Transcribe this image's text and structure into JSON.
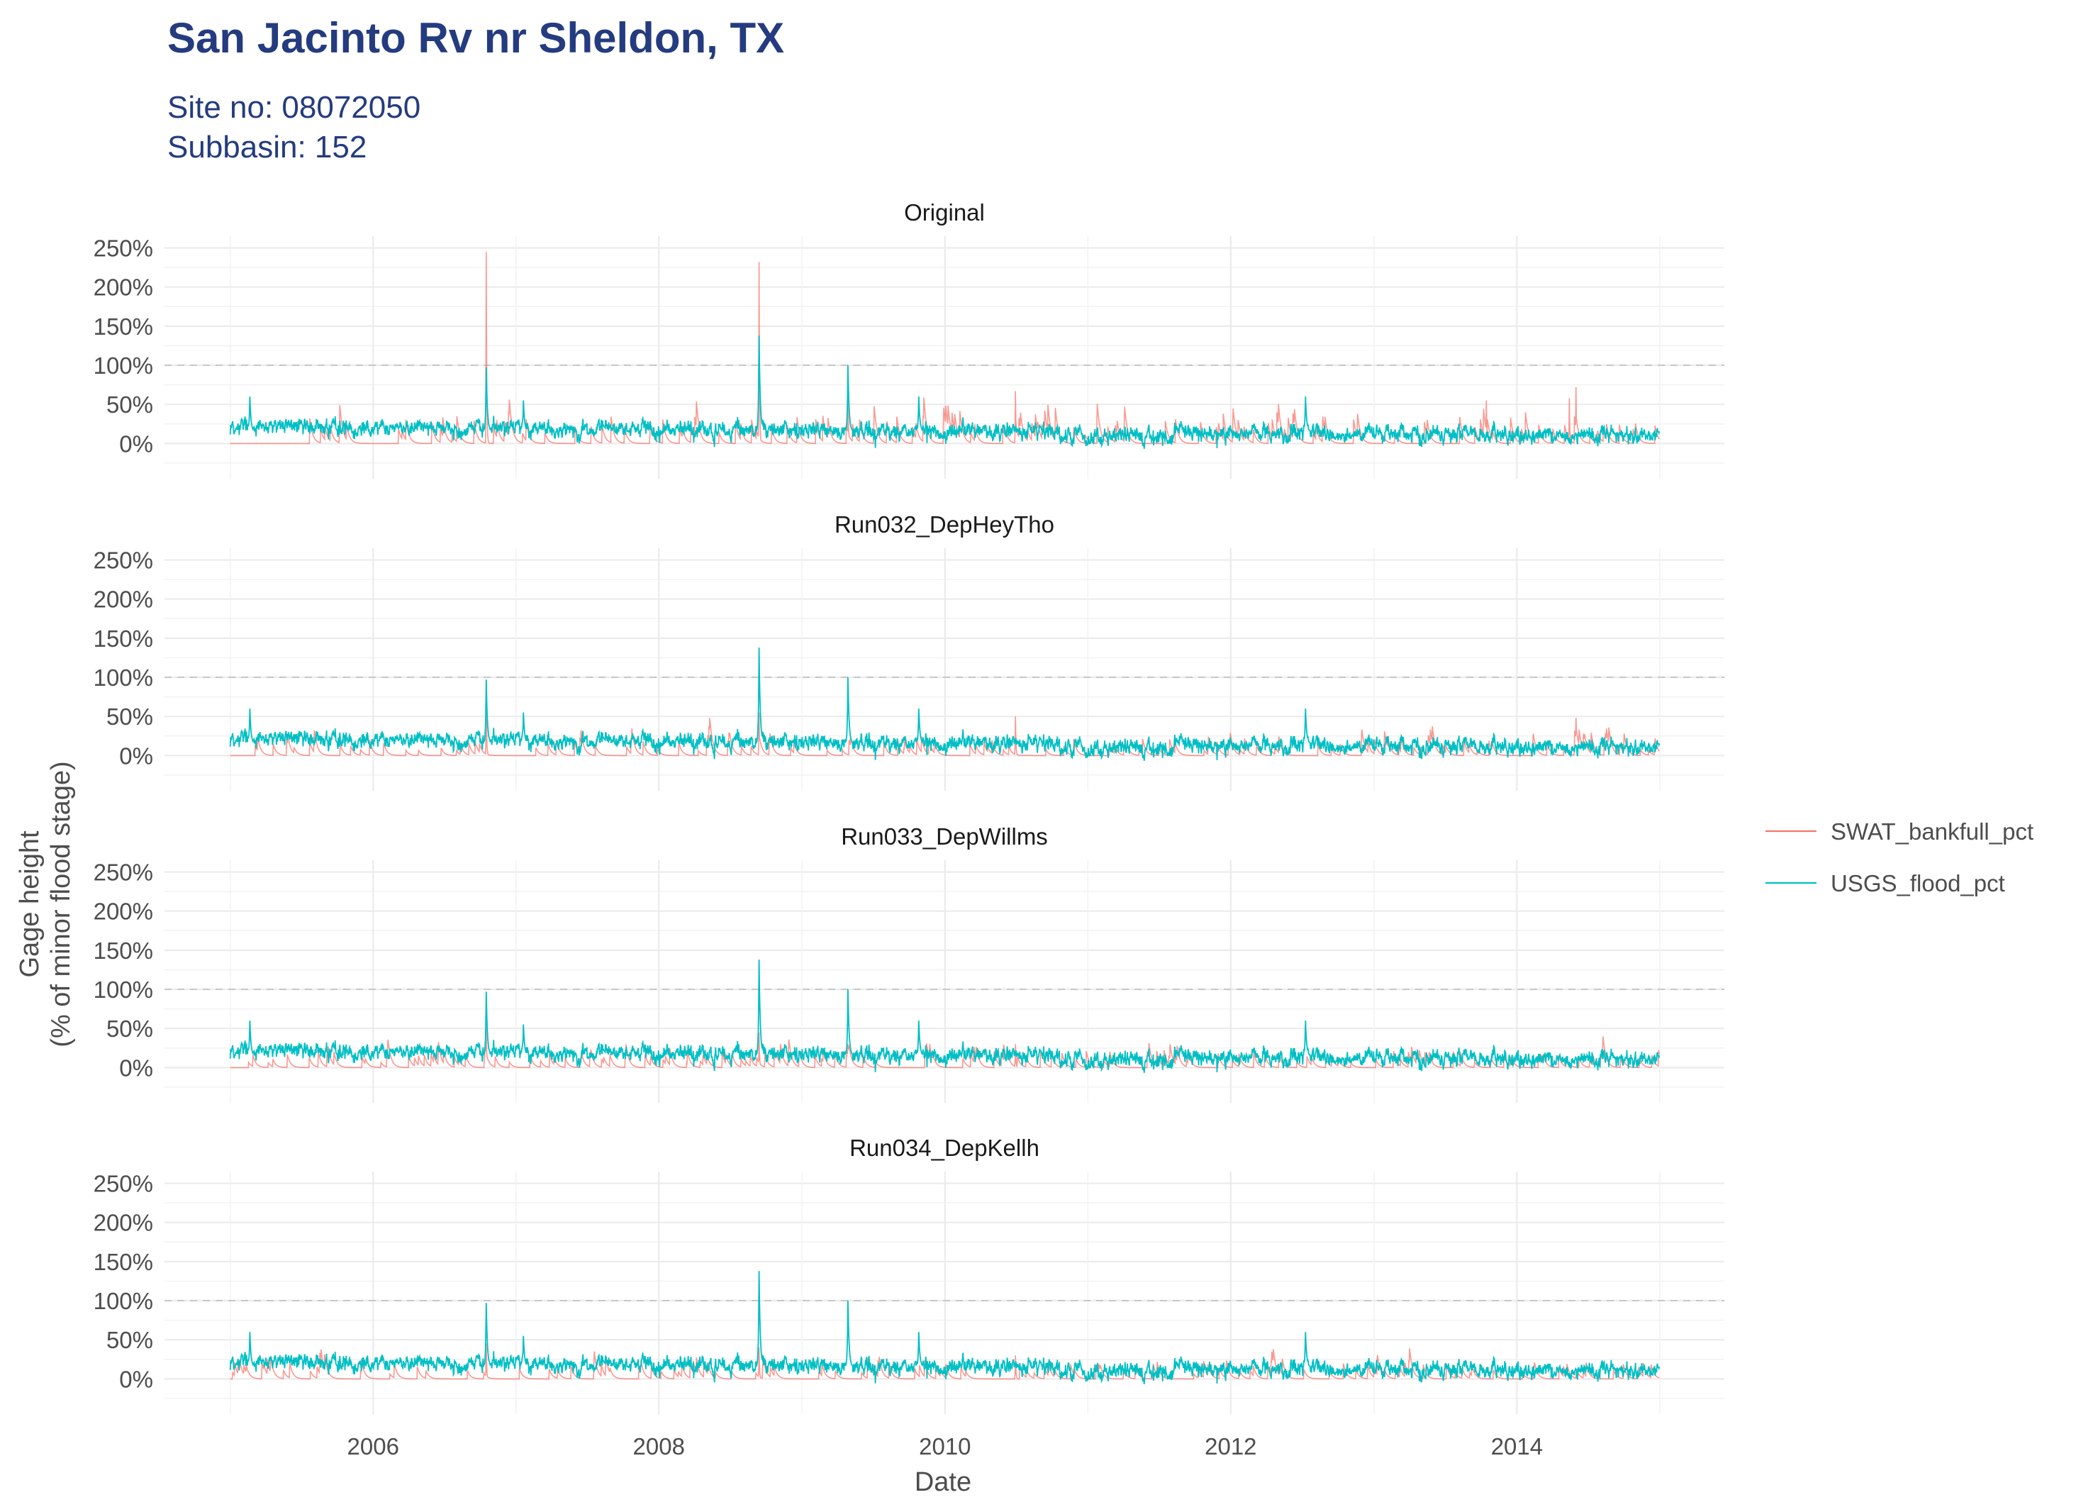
{
  "chart_data": {
    "type": "line",
    "title": "San Jacinto Rv nr Sheldon, TX",
    "subtitle_lines": [
      "Site no: 08072050",
      "Subbasin: 152"
    ],
    "xlabel": "Date",
    "ylabel_lines": [
      "Gage height",
      "(% of minor flood stage)"
    ],
    "x_range": [
      "2005-01-01",
      "2014-12-31"
    ],
    "xlim": [
      "2004-07-17",
      "2015-06-15"
    ],
    "x_ticks": [
      "2006",
      "2008",
      "2010",
      "2012",
      "2014"
    ],
    "ylim": [
      -0.45,
      2.65
    ],
    "y_ticks": [
      0,
      0.5,
      1.0,
      1.5,
      2.0,
      2.5
    ],
    "y_tick_labels": [
      "0%",
      "50%",
      "100%",
      "150%",
      "200%",
      "250%"
    ],
    "reference_line": {
      "y": 1.0,
      "style": "dashed"
    },
    "grid": true,
    "legend_position": "right",
    "series_colors": {
      "SWAT_bankfull_pct": "#F8766D",
      "USGS_flood_pct": "#00BFC4"
    },
    "usgs_flood_pct_peaks": [
      {
        "date": "2005-02-20",
        "y": 0.6
      },
      {
        "date": "2006-10-17",
        "y": 0.97
      },
      {
        "date": "2007-01-20",
        "y": 0.55
      },
      {
        "date": "2008-09-13",
        "y": 1.38
      },
      {
        "date": "2009-04-28",
        "y": 1.0
      },
      {
        "date": "2009-10-26",
        "y": 0.6
      },
      {
        "date": "2012-07-10",
        "y": 0.6
      }
    ],
    "panels": [
      {
        "title": "Original",
        "swat_bankfull_pct_peaks": [
          {
            "date": "2006-10-17",
            "y": 2.45
          },
          {
            "date": "2008-09-13",
            "y": 2.32
          },
          {
            "date": "2009-04-28",
            "y": 0.85
          },
          {
            "date": "2010-06-30",
            "y": 0.67
          },
          {
            "date": "2014-06-01",
            "y": 0.72
          },
          {
            "date": "2014-05-15",
            "y": 0.58
          },
          {
            "date": "2013-10-15",
            "y": 0.55
          }
        ]
      },
      {
        "title": "Run032_DepHeyTho",
        "swat_bankfull_pct_peaks": [
          {
            "date": "2006-10-17",
            "y": 0.7
          },
          {
            "date": "2008-09-13",
            "y": 0.55
          },
          {
            "date": "2010-06-30",
            "y": 0.5
          },
          {
            "date": "2014-06-01",
            "y": 0.48
          }
        ]
      },
      {
        "title": "Run033_DepWillms",
        "swat_bankfull_pct_peaks": [
          {
            "date": "2006-10-17",
            "y": 0.5
          },
          {
            "date": "2008-09-13",
            "y": 0.45
          },
          {
            "date": "2010-06-30",
            "y": 0.3
          }
        ]
      },
      {
        "title": "Run034_DepKellh",
        "swat_bankfull_pct_peaks": [
          {
            "date": "2006-10-17",
            "y": 0.45
          },
          {
            "date": "2008-09-13",
            "y": 0.4
          },
          {
            "date": "2010-06-30",
            "y": 0.3
          }
        ]
      }
    ],
    "series": [
      {
        "name": "SWAT_bankfull_pct",
        "color": "#F8766D"
      },
      {
        "name": "USGS_flood_pct",
        "color": "#00BFC4"
      }
    ]
  }
}
